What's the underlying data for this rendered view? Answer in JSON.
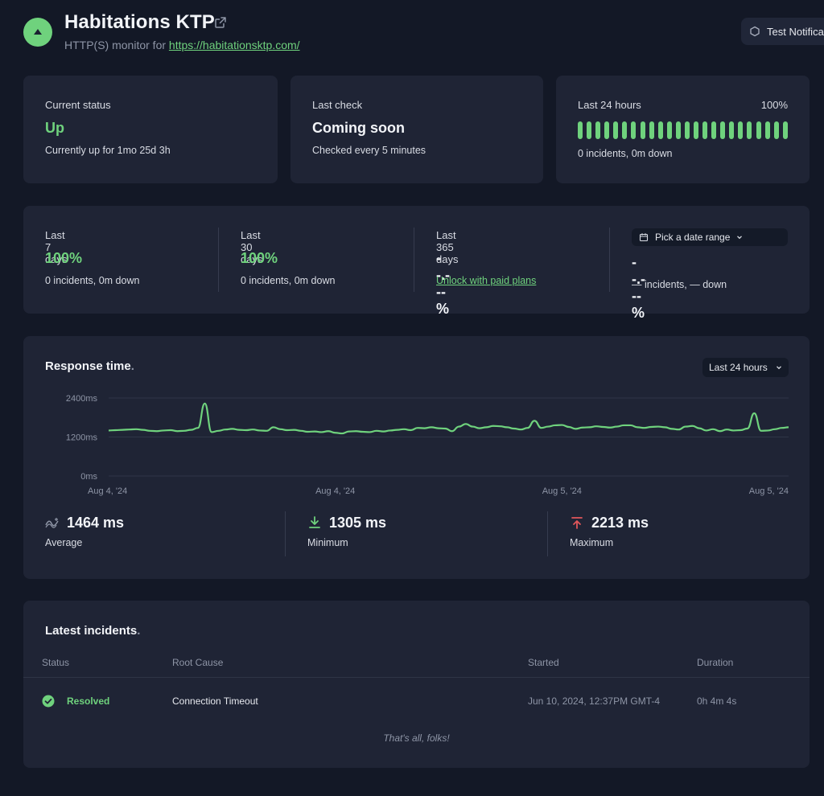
{
  "header": {
    "title": "Habitations KTP",
    "subtitle_prefix": "HTTP(S) monitor for ",
    "url": "https://habitationsktp.com/",
    "test_button": "Test Notifica"
  },
  "current_status": {
    "label": "Current status",
    "value": "Up",
    "detail": "Currently up for 1mo 25d 3h"
  },
  "last_check": {
    "label": "Last check",
    "value": "Coming soon",
    "detail": "Checked every 5 minutes"
  },
  "last_24h": {
    "label": "Last 24 hours",
    "percent": "100%",
    "bar_count": 24,
    "detail": "0 incidents, 0m down"
  },
  "ranges": {
    "d7": {
      "label": "Last 7 days",
      "value": "100%",
      "detail": "0 incidents, 0m down"
    },
    "d30": {
      "label": "Last 30 days",
      "value": "100%",
      "detail": "0 incidents, 0m down"
    },
    "d365": {
      "label": "Last 365 days",
      "value": "--.---%",
      "link": "Unlock with paid plans"
    },
    "custom": {
      "button": "Pick a date range",
      "value": "--.---%",
      "detail": "— incidents, — down"
    }
  },
  "response": {
    "title": "Response time",
    "title_dot": ".",
    "range_select": "Last 24 hours",
    "stats": {
      "average": {
        "value": "1464 ms",
        "label": "Average"
      },
      "minimum": {
        "value": "1305 ms",
        "label": "Minimum"
      },
      "maximum": {
        "value": "2213 ms",
        "label": "Maximum"
      }
    }
  },
  "chart_data": {
    "type": "line",
    "title": "Response time.",
    "y_ticks": [
      "2400ms",
      "1200ms",
      "0ms"
    ],
    "ylim": [
      0,
      2400
    ],
    "x_ticks": [
      "Aug 4, '24",
      "Aug 4, '24",
      "Aug 5, '24",
      "Aug 5, '24"
    ],
    "grid": true,
    "color": "#6fd27d",
    "series": [
      {
        "values": [
          1400,
          1410,
          1420,
          1430,
          1440,
          1420,
          1390,
          1380,
          1400,
          1410,
          1380,
          1390,
          1420,
          1480,
          2230,
          1350,
          1390,
          1430,
          1450,
          1420,
          1410,
          1430,
          1400,
          1390,
          1500,
          1440,
          1410,
          1420,
          1390,
          1360,
          1370,
          1350,
          1380,
          1330,
          1310,
          1370,
          1380,
          1360,
          1350,
          1390,
          1370,
          1400,
          1420,
          1440,
          1410,
          1480,
          1470,
          1500,
          1470,
          1460,
          1380,
          1520,
          1600,
          1520,
          1470,
          1500,
          1540,
          1530,
          1500,
          1460,
          1430,
          1480,
          1700,
          1480,
          1520,
          1560,
          1570,
          1510,
          1450,
          1490,
          1500,
          1530,
          1510,
          1490,
          1520,
          1560,
          1560,
          1500,
          1480,
          1510,
          1520,
          1500,
          1450,
          1430,
          1520,
          1540,
          1470,
          1400,
          1440,
          1380,
          1430,
          1400,
          1410,
          1460,
          1930,
          1390,
          1400,
          1440,
          1480,
          1500
        ]
      }
    ]
  },
  "incidents": {
    "title": "Latest incidents",
    "title_dot": ".",
    "columns": [
      "Status",
      "Root Cause",
      "Started",
      "Duration"
    ],
    "rows": [
      {
        "status": "Resolved",
        "root_cause": "Connection Timeout",
        "started": "Jun 10, 2024, 12:37PM GMT-4",
        "duration": "0h 4m 4s"
      }
    ],
    "footer": "That's all, folks!"
  }
}
